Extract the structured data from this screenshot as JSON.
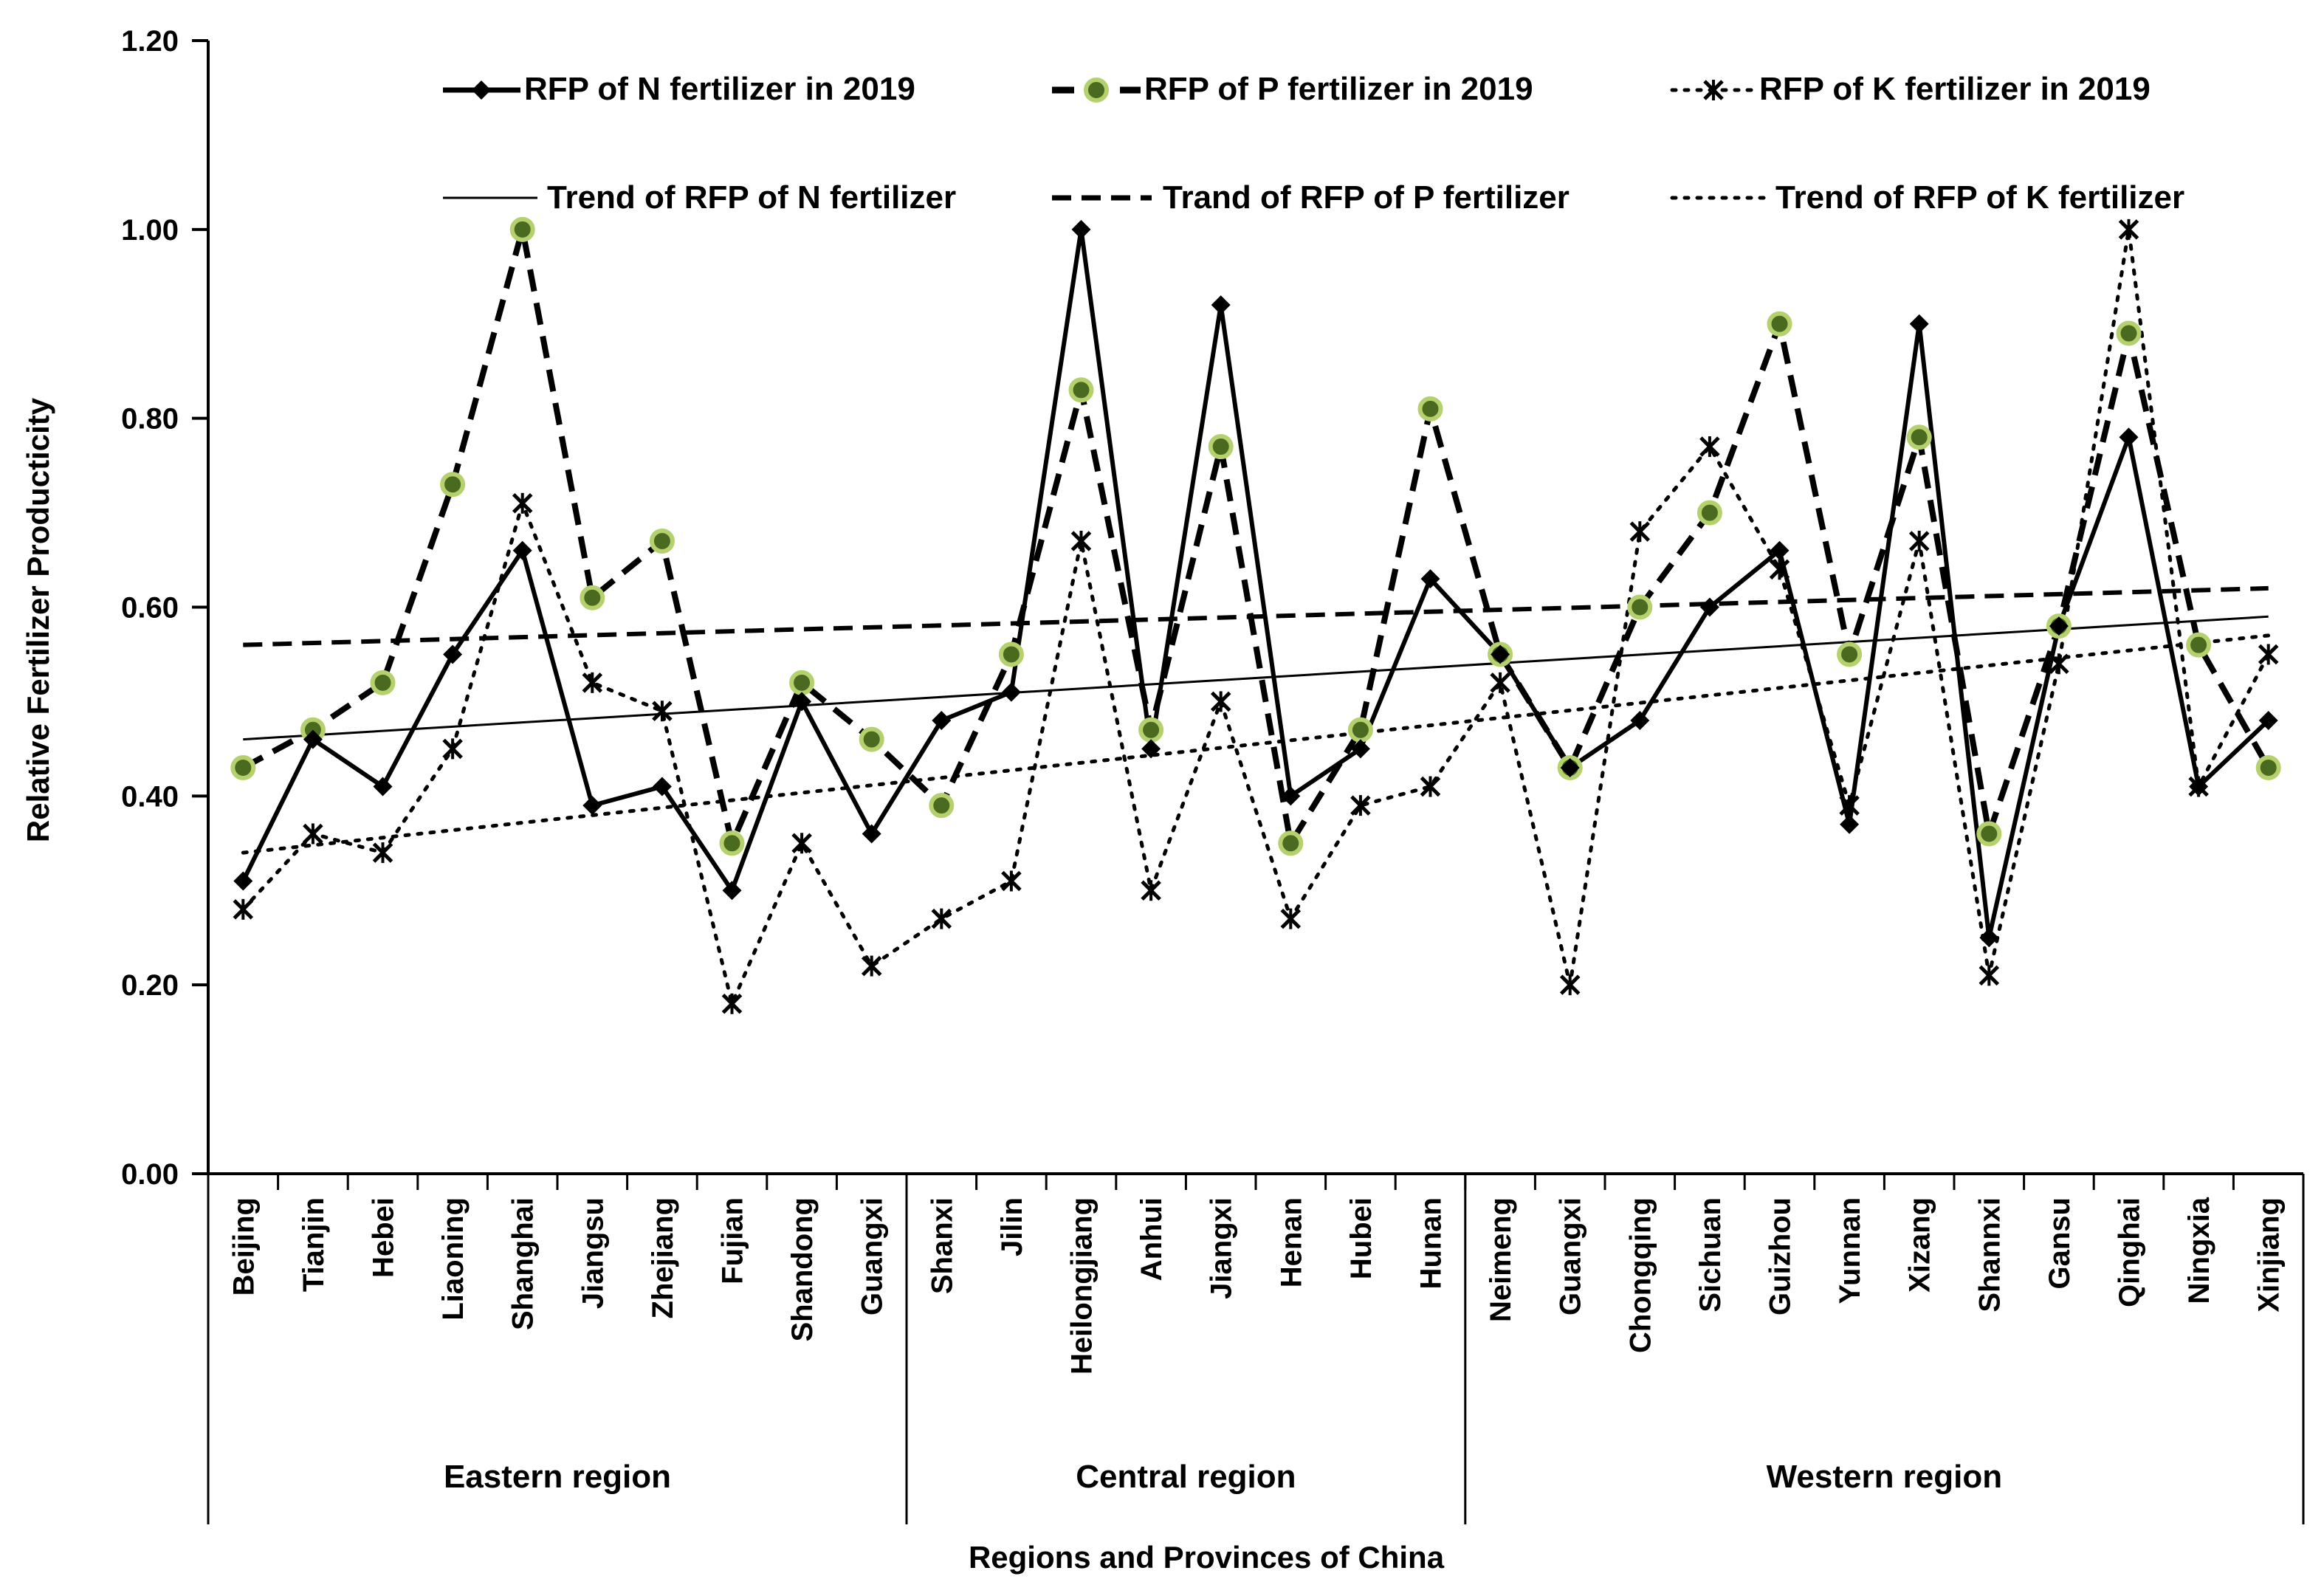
{
  "chart_data": {
    "type": "line",
    "ylabel": "Relative Fertilizer Producticity",
    "xlabel": "Regions and Provinces of China",
    "ylim": [
      0,
      1.2
    ],
    "yticks": [
      "0.00",
      "0.20",
      "0.40",
      "0.60",
      "0.80",
      "1.00",
      "1.20"
    ],
    "categories": [
      "Beijing",
      "Tianjin",
      "Hebei",
      "Liaoning",
      "Shanghai",
      "Jiangsu",
      "Zhejiang",
      "Fujian",
      "Shandong",
      "Guangxi",
      "Shanxi",
      "Jilin",
      "Heilongjiang",
      "Anhui",
      "Jiangxi",
      "Henan",
      "Hubei",
      "Hunan",
      "Neimeng",
      "Guangxi",
      "Chongqing",
      "Sichuan",
      "Guizhou",
      "Yunnan",
      "Xizang",
      "Shannxi",
      "Gansu",
      "Qinghai",
      "Ningxia",
      "Xinjiang"
    ],
    "regions": [
      {
        "name": "Eastern region",
        "start": 0,
        "end": 9
      },
      {
        "name": "Central region",
        "start": 10,
        "end": 17
      },
      {
        "name": "Western region",
        "start": 18,
        "end": 29
      }
    ],
    "series": [
      {
        "name": "RFP of N fertilizer in 2019",
        "values": [
          0.31,
          0.46,
          0.41,
          0.55,
          0.66,
          0.39,
          0.41,
          0.3,
          0.5,
          0.36,
          0.48,
          0.51,
          1.0,
          0.45,
          0.92,
          0.4,
          0.45,
          0.63,
          0.55,
          0.43,
          0.48,
          0.6,
          0.66,
          0.37,
          0.9,
          0.25,
          0.58,
          0.78,
          0.41,
          0.48
        ]
      },
      {
        "name": "RFP of P fertilizer in 2019",
        "values": [
          0.43,
          0.47,
          0.52,
          0.73,
          1.0,
          0.61,
          0.67,
          0.35,
          0.52,
          0.46,
          0.39,
          0.55,
          0.83,
          0.47,
          0.77,
          0.35,
          0.47,
          0.81,
          0.55,
          0.43,
          0.6,
          0.7,
          0.9,
          0.55,
          0.78,
          0.36,
          0.58,
          0.89,
          0.56,
          0.43
        ]
      },
      {
        "name": "RFP of K fertilizer in 2019",
        "values": [
          0.28,
          0.36,
          0.34,
          0.45,
          0.71,
          0.52,
          0.49,
          0.18,
          0.35,
          0.22,
          0.27,
          0.31,
          0.67,
          0.3,
          0.5,
          0.27,
          0.39,
          0.41,
          0.52,
          0.2,
          0.68,
          0.77,
          0.64,
          0.39,
          0.67,
          0.21,
          0.54,
          1.0,
          0.41,
          0.55
        ]
      }
    ],
    "trends": [
      {
        "name": "Trend of RFP of N fertilizer",
        "start": 0.46,
        "end": 0.59
      },
      {
        "name": "Trand of RFP of P fertilizer",
        "start": 0.56,
        "end": 0.62
      },
      {
        "name": "Trend of RFP of K fertilizer",
        "start": 0.34,
        "end": 0.57
      }
    ],
    "legend_position": "top"
  },
  "colors": {
    "line": "#000000",
    "p_marker_fill": "#4a6b1f",
    "p_marker_ring": "#b5d16e"
  }
}
